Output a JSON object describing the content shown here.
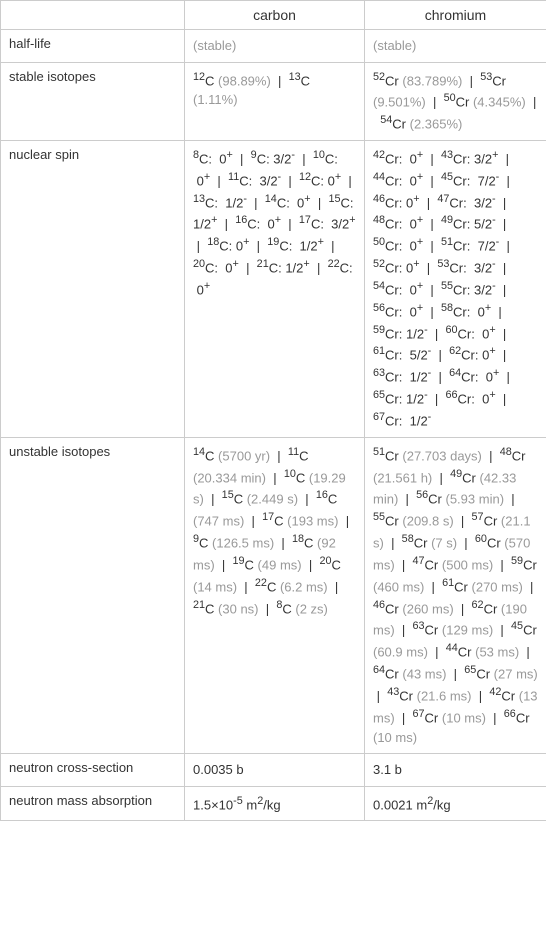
{
  "colors": {
    "border": "#cccccc",
    "text": "#333333",
    "muted": "#999999",
    "background": "#ffffff"
  },
  "columns": [
    "",
    "carbon",
    "chromium"
  ],
  "rows": [
    {
      "label": "half-life",
      "carbon": "(stable)",
      "carbon_muted": true,
      "chromium": "(stable)",
      "chromium_muted": true
    },
    {
      "label": "stable isotopes",
      "carbon_html": "<sup>12</sup>C <span class='gray'>(98.89%)</span> &nbsp;|&nbsp; <sup>13</sup>C <span class='gray'>(1.11%)</span>",
      "chromium_html": "<sup>52</sup>Cr <span class='gray'>(83.789%)</span> &nbsp;|&nbsp; <sup>53</sup>Cr <span class='gray'>(9.501%)</span> &nbsp;|&nbsp; <sup>50</sup>Cr <span class='gray'>(4.345%)</span> &nbsp;|&nbsp; <sup>54</sup>Cr <span class='gray'>(2.365%)</span>"
    },
    {
      "label": "nuclear spin",
      "carbon_html": "<sup>8</sup>C: &nbsp;0<sup>+</sup> &nbsp;|&nbsp; <sup>9</sup>C: 3/2<sup>-</sup> &nbsp;|&nbsp; <sup>10</sup>C: &nbsp;0<sup>+</sup> &nbsp;|&nbsp; <sup>11</sup>C: &nbsp;3/2<sup>-</sup> &nbsp;|&nbsp; <sup>12</sup>C: 0<sup>+</sup> &nbsp;|&nbsp; <sup>13</sup>C: &nbsp;1/2<sup>-</sup> &nbsp;|&nbsp; <sup>14</sup>C: &nbsp;0<sup>+</sup> &nbsp;|&nbsp; <sup>15</sup>C: 1/2<sup>+</sup> &nbsp;|&nbsp; <sup>16</sup>C: &nbsp;0<sup>+</sup> &nbsp;|&nbsp; <sup>17</sup>C: &nbsp;3/2<sup>+</sup> &nbsp;|&nbsp; <sup>18</sup>C: 0<sup>+</sup> &nbsp;|&nbsp; <sup>19</sup>C: &nbsp;1/2<sup>+</sup> &nbsp;|&nbsp; <sup>20</sup>C: &nbsp;0<sup>+</sup> &nbsp;|&nbsp; <sup>21</sup>C: 1/2<sup>+</sup> &nbsp;|&nbsp; <sup>22</sup>C: &nbsp;0<sup>+</sup>",
      "chromium_html": "<sup>42</sup>Cr: &nbsp;0<sup>+</sup> &nbsp;|&nbsp; <sup>43</sup>Cr: 3/2<sup>+</sup> &nbsp;|&nbsp; <sup>44</sup>Cr: &nbsp;0<sup>+</sup> &nbsp;|&nbsp; <sup>45</sup>Cr: &nbsp;7/2<sup>-</sup> &nbsp;|&nbsp; <sup>46</sup>Cr: 0<sup>+</sup> &nbsp;|&nbsp; <sup>47</sup>Cr: &nbsp;3/2<sup>-</sup> &nbsp;|&nbsp; <sup>48</sup>Cr: &nbsp;0<sup>+</sup> &nbsp;|&nbsp; <sup>49</sup>Cr: 5/2<sup>-</sup> &nbsp;|&nbsp; <sup>50</sup>Cr: &nbsp;0<sup>+</sup> &nbsp;|&nbsp; <sup>51</sup>Cr: &nbsp;7/2<sup>-</sup> &nbsp;|&nbsp; <sup>52</sup>Cr: 0<sup>+</sup> &nbsp;|&nbsp; <sup>53</sup>Cr: &nbsp;3/2<sup>-</sup> &nbsp;|&nbsp; <sup>54</sup>Cr: &nbsp;0<sup>+</sup> &nbsp;|&nbsp; <sup>55</sup>Cr: 3/2<sup>-</sup> &nbsp;|&nbsp; <sup>56</sup>Cr: &nbsp;0<sup>+</sup> &nbsp;|&nbsp; <sup>58</sup>Cr: &nbsp;0<sup>+</sup> &nbsp;|&nbsp; <sup>59</sup>Cr: 1/2<sup>-</sup> &nbsp;|&nbsp; <sup>60</sup>Cr: &nbsp;0<sup>+</sup> &nbsp;|&nbsp; <sup>61</sup>Cr: &nbsp;5/2<sup>-</sup> &nbsp;|&nbsp; <sup>62</sup>Cr: 0<sup>+</sup> &nbsp;|&nbsp; <sup>63</sup>Cr: &nbsp;1/2<sup>-</sup> &nbsp;|&nbsp; <sup>64</sup>Cr: &nbsp;0<sup>+</sup> &nbsp;|&nbsp; <sup>65</sup>Cr: 1/2<sup>-</sup> &nbsp;|&nbsp; <sup>66</sup>Cr: &nbsp;0<sup>+</sup> &nbsp;|&nbsp; <sup>67</sup>Cr: &nbsp;1/2<sup>-</sup>"
    },
    {
      "label": "unstable isotopes",
      "carbon_html": "<sup>14</sup>C <span class='gray'>(5700 yr)</span> &nbsp;|&nbsp; <sup>11</sup>C <span class='gray'>(20.334 min)</span> &nbsp;|&nbsp; <sup>10</sup>C <span class='gray'>(19.29 s)</span> &nbsp;|&nbsp; <sup>15</sup>C <span class='gray'>(2.449 s)</span> &nbsp;|&nbsp; <sup>16</sup>C <span class='gray'>(747 ms)</span> &nbsp;|&nbsp; <sup>17</sup>C <span class='gray'>(193 ms)</span> &nbsp;|&nbsp; <sup>9</sup>C <span class='gray'>(126.5 ms)</span> &nbsp;|&nbsp; <sup>18</sup>C <span class='gray'>(92 ms)</span> &nbsp;|&nbsp; <sup>19</sup>C <span class='gray'>(49 ms)</span> &nbsp;|&nbsp; <sup>20</sup>C <span class='gray'>(14 ms)</span> &nbsp;|&nbsp; <sup>22</sup>C <span class='gray'>(6.2 ms)</span> &nbsp;|&nbsp; <sup>21</sup>C <span class='gray'>(30 ns)</span> &nbsp;|&nbsp; <sup>8</sup>C <span class='gray'>(2 zs)</span>",
      "chromium_html": "<sup>51</sup>Cr <span class='gray'>(27.703 days)</span> &nbsp;|&nbsp; <sup>48</sup>Cr <span class='gray'>(21.561 h)</span> &nbsp;|&nbsp; <sup>49</sup>Cr <span class='gray'>(42.33 min)</span> &nbsp;|&nbsp; <sup>56</sup>Cr <span class='gray'>(5.93 min)</span> &nbsp;|&nbsp; <sup>55</sup>Cr <span class='gray'>(209.8 s)</span> &nbsp;|&nbsp; <sup>57</sup>Cr <span class='gray'>(21.1 s)</span> &nbsp;|&nbsp; <sup>58</sup>Cr <span class='gray'>(7 s)</span> &nbsp;|&nbsp; <sup>60</sup>Cr <span class='gray'>(570 ms)</span> &nbsp;|&nbsp; <sup>47</sup>Cr <span class='gray'>(500 ms)</span> &nbsp;|&nbsp; <sup>59</sup>Cr <span class='gray'>(460 ms)</span> &nbsp;|&nbsp; <sup>61</sup>Cr <span class='gray'>(270 ms)</span> &nbsp;|&nbsp; <sup>46</sup>Cr <span class='gray'>(260 ms)</span> &nbsp;|&nbsp; <sup>62</sup>Cr <span class='gray'>(190 ms)</span> &nbsp;|&nbsp; <sup>63</sup>Cr <span class='gray'>(129 ms)</span> &nbsp;|&nbsp; <sup>45</sup>Cr <span class='gray'>(60.9 ms)</span> &nbsp;|&nbsp; <sup>44</sup>Cr <span class='gray'>(53 ms)</span> &nbsp;|&nbsp; <sup>64</sup>Cr <span class='gray'>(43 ms)</span> &nbsp;|&nbsp; <sup>65</sup>Cr <span class='gray'>(27 ms)</span> &nbsp;|&nbsp; <sup>43</sup>Cr <span class='gray'>(21.6 ms)</span> &nbsp;|&nbsp; <sup>42</sup>Cr <span class='gray'>(13 ms)</span> &nbsp;|&nbsp; <sup>67</sup>Cr <span class='gray'>(10 ms)</span> &nbsp;|&nbsp; <sup>66</sup>Cr <span class='gray'>(10 ms)</span>"
    },
    {
      "label": "neutron cross-section",
      "carbon": "0.0035 b",
      "chromium": "3.1 b"
    },
    {
      "label": "neutron mass absorption",
      "carbon_html": "1.5×10<sup>-5</sup> m<sup>2</sup>/kg",
      "chromium_html": "0.0021 m<sup>2</sup>/kg"
    }
  ]
}
